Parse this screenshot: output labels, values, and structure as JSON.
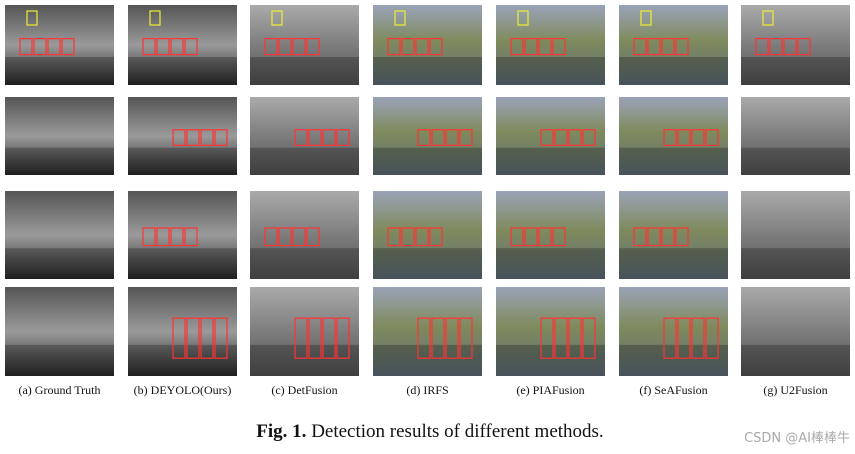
{
  "columns": [
    "(a) Ground Truth",
    "(b) DEYOLO(Ours)",
    "(c) DetFusion",
    "(d) IRFS",
    "(e) PIAFusion",
    "(f) SeAFusion",
    "(g) U2Fusion"
  ],
  "caption": {
    "label": "Fig. 1.",
    "text": "Detection results of different methods."
  },
  "watermark": "CSDN @AI棒棒牛"
}
